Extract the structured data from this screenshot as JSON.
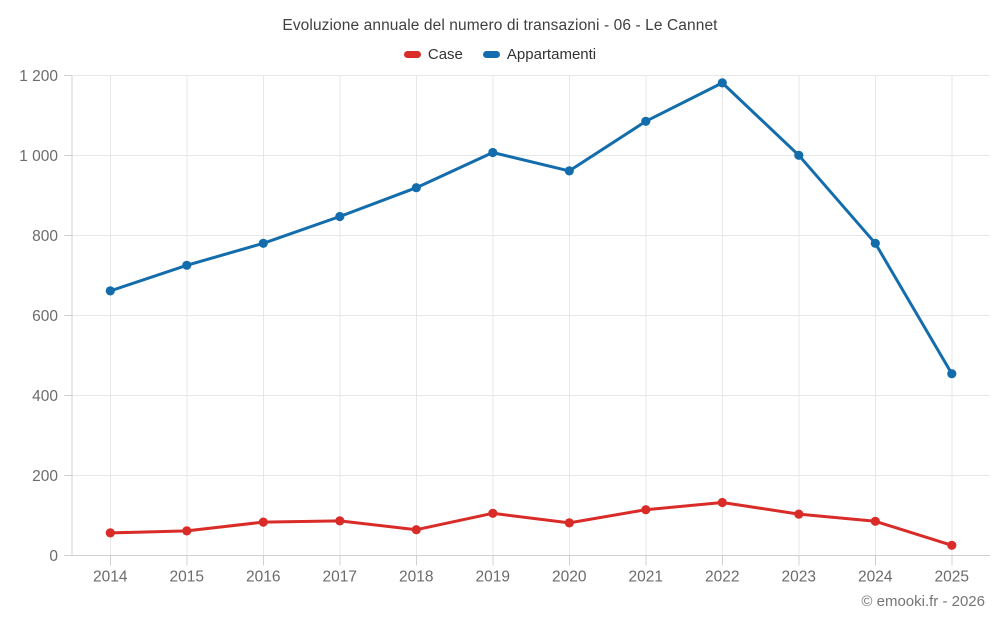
{
  "footer": {
    "copyright": "© emooki.fr - 2026"
  },
  "colors": {
    "case_red": "#d92c28",
    "appartamenti_blue": "#136dad",
    "grid": "#e7e7e7",
    "axis": "#d0d0d0",
    "title_text": "#404040",
    "legend_text": "#333333",
    "axis_text": "#6b6b6b",
    "footer_text": "#757575",
    "background": "#ffffff"
  },
  "chart_data": {
    "type": "line",
    "title": "Evoluzione annuale del numero di transazioni - 06 - Le Cannet",
    "categories": [
      "2014",
      "2015",
      "2016",
      "2017",
      "2018",
      "2019",
      "2020",
      "2021",
      "2022",
      "2023",
      "2024",
      "2025"
    ],
    "series": [
      {
        "name": "Case",
        "color": "#d92c28",
        "values": [
          57,
          62,
          84,
          87,
          65,
          106,
          82,
          115,
          133,
          104,
          86,
          26
        ]
      },
      {
        "name": "Appartamenti",
        "color": "#136dad",
        "values": [
          662,
          726,
          781,
          848,
          920,
          1008,
          962,
          1086,
          1182,
          1001,
          781,
          455
        ]
      }
    ],
    "xlabel": "",
    "ylabel": "",
    "ylim": [
      0,
      1200
    ],
    "ytick_step": 200,
    "ytick_labels": [
      "0",
      "200",
      "400",
      "600",
      "800",
      "1 000",
      "1 200"
    ],
    "grid": "both",
    "legend_position": "top",
    "marker": "circle"
  }
}
